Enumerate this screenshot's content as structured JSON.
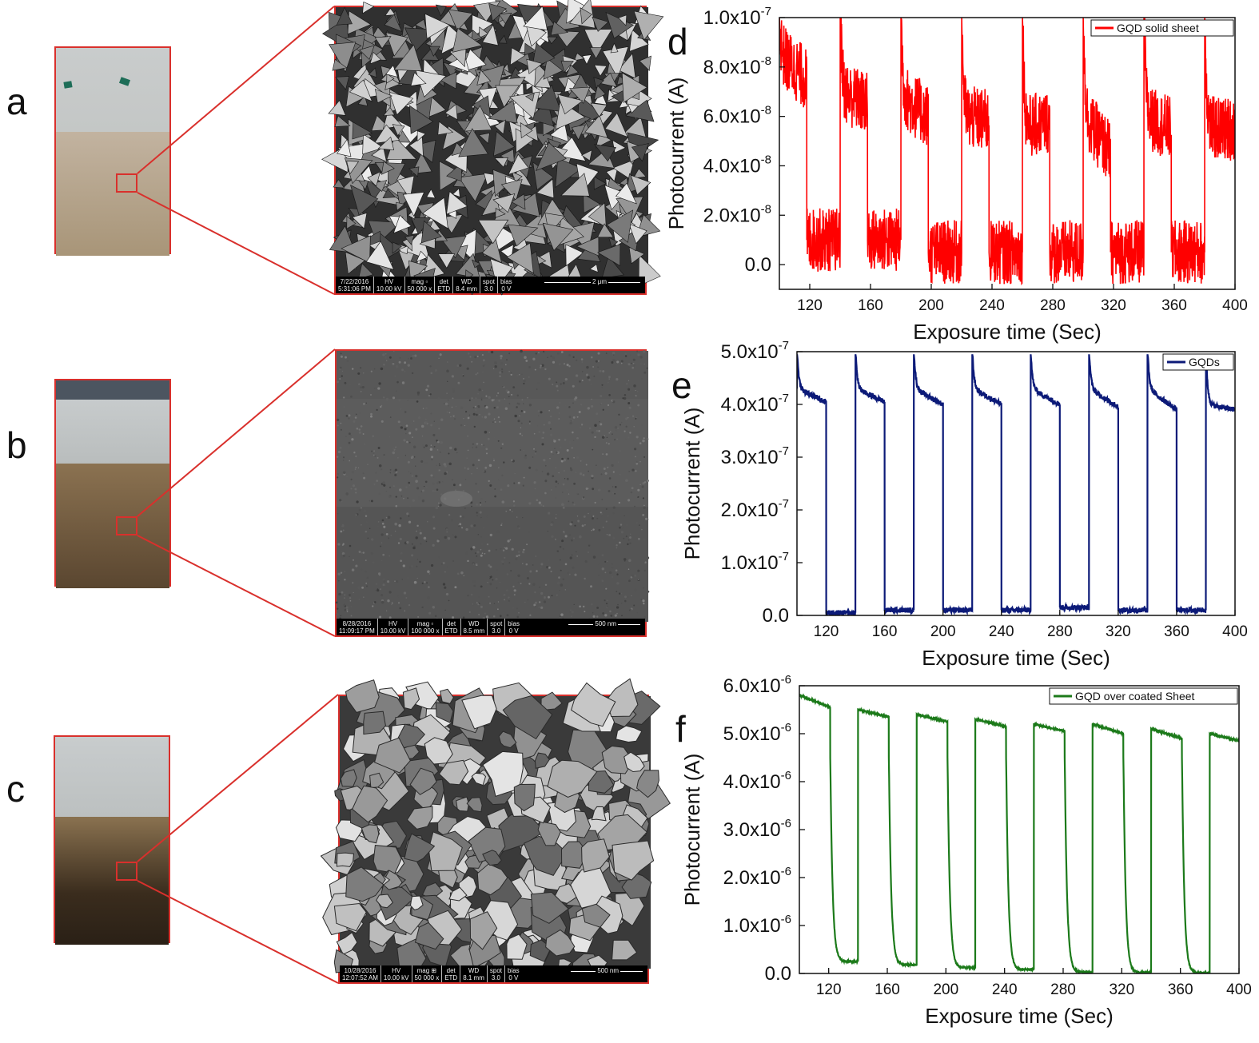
{
  "panels": {
    "a": {
      "label": "a"
    },
    "b": {
      "label": "b"
    },
    "c": {
      "label": "c"
    },
    "d": {
      "label": "d"
    },
    "e": {
      "label": "e"
    },
    "f": {
      "label": "f"
    }
  },
  "sem": [
    {
      "date": "7/22/2016",
      "time": "5:31:06 PM",
      "hv": "10.00 kV",
      "mag": "50 000 x",
      "det": "ETD",
      "wd": "8.4 mm",
      "spot": "3.0",
      "bias": "0 V",
      "scale": "2 μm",
      "texture": "triangular-crystals"
    },
    {
      "date": "8/28/2016",
      "time": "11:09:17 PM",
      "hv": "10.00 kV",
      "mag": "100 000 x",
      "det": "ETD",
      "wd": "8.5 mm",
      "spot": "3.0",
      "bias": "0 V",
      "scale": "500 nm",
      "texture": "smooth-granular"
    },
    {
      "date": "10/28/2016",
      "time": "12:07:52 AM",
      "hv": "10.00 kV",
      "mag": "50 000 x",
      "det": "ETD",
      "wd": "8.1 mm",
      "spot": "3.0",
      "bias": "0 V",
      "scale": "500 nm",
      "texture": "coarse-grains"
    }
  ],
  "sem_header": {
    "hv": "HV",
    "mag": "mag",
    "det": "det",
    "wd": "WD",
    "spot": "spot",
    "bias": "bias"
  },
  "colors": {
    "frame": "#d9302c",
    "red": "#ff0000",
    "navy": "#0c1a78",
    "green": "#1c7a1a"
  },
  "chart_data": [
    {
      "panel": "d",
      "type": "line",
      "xlabel": "Exposure time (Sec)",
      "ylabel": "Photocurrent (A)",
      "xlim": [
        100,
        400
      ],
      "ylim": [
        -1e-08,
        1e-07
      ],
      "xticks": [
        "120",
        "160",
        "200",
        "240",
        "280",
        "320",
        "360",
        "400"
      ],
      "yticks": [
        {
          "value": 0,
          "mantissa": "0.0",
          "exp": ""
        },
        {
          "value": 2e-08,
          "mantissa": "2.0x10",
          "exp": "-8"
        },
        {
          "value": 4e-08,
          "mantissa": "4.0x10",
          "exp": "-8"
        },
        {
          "value": 6e-08,
          "mantissa": "6.0x10",
          "exp": "-8"
        },
        {
          "value": 8e-08,
          "mantissa": "8.0x10",
          "exp": "-8"
        },
        {
          "value": 1e-07,
          "mantissa": "1.0x10",
          "exp": "-7"
        }
      ],
      "series": [
        {
          "name": "GQD solid sheet",
          "color": "#ff0000",
          "noise": 1.3e-08,
          "cycles": [
            {
              "on_start": 100,
              "off_start": 118,
              "on_peak": 1e-07,
              "on_start_val": 8.5e-08,
              "on_end_val": 7.5e-08,
              "off_val": 1e-08
            },
            {
              "on_start": 140,
              "off_start": 158,
              "on_peak": 1e-07,
              "on_start_val": 7e-08,
              "on_end_val": 6.5e-08,
              "off_val": 1e-08
            },
            {
              "on_start": 180,
              "off_start": 198,
              "on_peak": 1e-07,
              "on_start_val": 6.8e-08,
              "on_end_val": 6e-08,
              "off_val": 5e-09
            },
            {
              "on_start": 220,
              "off_start": 238,
              "on_peak": 1e-07,
              "on_start_val": 6e-08,
              "on_end_val": 5.8e-08,
              "off_val": 5e-09
            },
            {
              "on_start": 260,
              "off_start": 278,
              "on_peak": 1e-07,
              "on_start_val": 5.5e-08,
              "on_end_val": 5.8e-08,
              "off_val": 5e-09
            },
            {
              "on_start": 300,
              "off_start": 318,
              "on_peak": 1e-07,
              "on_start_val": 6e-08,
              "on_end_val": 4.5e-08,
              "off_val": 5e-09
            },
            {
              "on_start": 340,
              "off_start": 358,
              "on_peak": 1e-07,
              "on_start_val": 6e-08,
              "on_end_val": 5.5e-08,
              "off_val": 5e-09
            },
            {
              "on_start": 380,
              "off_start": 400,
              "on_peak": 1e-07,
              "on_start_val": 5.5e-08,
              "on_end_val": 5.5e-08,
              "off_val": 5e-09
            }
          ]
        }
      ],
      "legend": "top-right"
    },
    {
      "panel": "e",
      "type": "line",
      "xlabel": "Exposure time (Sec)",
      "ylabel": "Photocurrent (A)",
      "xlim": [
        100,
        400
      ],
      "ylim": [
        0,
        5e-07
      ],
      "xticks": [
        "120",
        "160",
        "200",
        "240",
        "280",
        "320",
        "360",
        "400"
      ],
      "yticks": [
        {
          "value": 0,
          "mantissa": "0.0",
          "exp": ""
        },
        {
          "value": 1e-07,
          "mantissa": "1.0x10",
          "exp": "-7"
        },
        {
          "value": 2e-07,
          "mantissa": "2.0x10",
          "exp": "-7"
        },
        {
          "value": 3e-07,
          "mantissa": "3.0x10",
          "exp": "-7"
        },
        {
          "value": 4e-07,
          "mantissa": "4.0x10",
          "exp": "-7"
        },
        {
          "value": 5e-07,
          "mantissa": "5.0x10",
          "exp": "-7"
        }
      ],
      "series": [
        {
          "name": "GQDs",
          "color": "#0c1a78",
          "noise": 5e-09,
          "cycles": [
            {
              "on_start": 100,
              "off_start": 120,
              "on_peak": 4.95e-07,
              "on_start_val": 4.3e-07,
              "on_end_val": 4.05e-07,
              "off_val": 5e-09
            },
            {
              "on_start": 140,
              "off_start": 160,
              "on_peak": 4.95e-07,
              "on_start_val": 4.3e-07,
              "on_end_val": 4.05e-07,
              "off_val": 1e-08
            },
            {
              "on_start": 180,
              "off_start": 200,
              "on_peak": 4.95e-07,
              "on_start_val": 4.3e-07,
              "on_end_val": 4e-07,
              "off_val": 1e-08
            },
            {
              "on_start": 220,
              "off_start": 240,
              "on_peak": 4.95e-07,
              "on_start_val": 4.3e-07,
              "on_end_val": 4e-07,
              "off_val": 1e-08
            },
            {
              "on_start": 260,
              "off_start": 280,
              "on_peak": 4.95e-07,
              "on_start_val": 4.3e-07,
              "on_end_val": 4e-07,
              "off_val": 1.5e-08
            },
            {
              "on_start": 300,
              "off_start": 320,
              "on_peak": 4.95e-07,
              "on_start_val": 4.3e-07,
              "on_end_val": 3.95e-07,
              "off_val": 1e-08
            },
            {
              "on_start": 340,
              "off_start": 360,
              "on_peak": 4.95e-07,
              "on_start_val": 4.3e-07,
              "on_end_val": 3.9e-07,
              "off_val": 1e-08
            },
            {
              "on_start": 380,
              "off_start": 400,
              "on_peak": 4.95e-07,
              "on_start_val": 4e-07,
              "on_end_val": 3.9e-07,
              "off_val": 1e-08
            }
          ]
        }
      ],
      "legend": "top-right"
    },
    {
      "panel": "f",
      "type": "line",
      "xlabel": "Exposure time (Sec)",
      "ylabel": "Photocurrent (A)",
      "xlim": [
        100,
        400
      ],
      "ylim": [
        0,
        6e-06
      ],
      "xticks": [
        "120",
        "160",
        "200",
        "240",
        "280",
        "320",
        "360",
        "400"
      ],
      "yticks": [
        {
          "value": 0,
          "mantissa": "0.0",
          "exp": ""
        },
        {
          "value": 1e-06,
          "mantissa": "1.0x10",
          "exp": "-6"
        },
        {
          "value": 2e-06,
          "mantissa": "2.0x10",
          "exp": "-6"
        },
        {
          "value": 3e-06,
          "mantissa": "3.0x10",
          "exp": "-6"
        },
        {
          "value": 4e-06,
          "mantissa": "4.0x10",
          "exp": "-6"
        },
        {
          "value": 5e-06,
          "mantissa": "5.0x10",
          "exp": "-6"
        },
        {
          "value": 6e-06,
          "mantissa": "6.0x10",
          "exp": "-6"
        }
      ],
      "series": [
        {
          "name": "GQD over coated Sheet",
          "color": "#1c7a1a",
          "noise": 1.5e-08,
          "cycles": [
            {
              "on_start": 100,
              "off_start": 121,
              "on_peak": 5.8e-06,
              "on_start_val": 5.8e-06,
              "on_end_val": 5.55e-06,
              "off_val": 2.5e-07,
              "off_start_val": 4.5e-06
            },
            {
              "on_start": 140,
              "off_start": 161,
              "on_peak": 5.5e-06,
              "on_start_val": 5.5e-06,
              "on_end_val": 5.35e-06,
              "off_val": 1.8e-07,
              "off_start_val": 4.5e-06
            },
            {
              "on_start": 180,
              "off_start": 201,
              "on_peak": 5.4e-06,
              "on_start_val": 5.4e-06,
              "on_end_val": 5.25e-06,
              "off_val": 1.2e-07,
              "off_start_val": 4.5e-06
            },
            {
              "on_start": 220,
              "off_start": 241,
              "on_peak": 5.3e-06,
              "on_start_val": 5.3e-06,
              "on_end_val": 5.15e-06,
              "off_val": 8e-08,
              "off_start_val": 4.5e-06
            },
            {
              "on_start": 260,
              "off_start": 281,
              "on_peak": 5.2e-06,
              "on_start_val": 5.2e-06,
              "on_end_val": 5.05e-06,
              "off_val": 3e-08,
              "off_start_val": 4.5e-06
            },
            {
              "on_start": 300,
              "off_start": 321,
              "on_peak": 5.2e-06,
              "on_start_val": 5.2e-06,
              "on_end_val": 5e-06,
              "off_val": 2e-08,
              "off_start_val": 4.5e-06
            },
            {
              "on_start": 340,
              "off_start": 361,
              "on_peak": 5.1e-06,
              "on_start_val": 5.1e-06,
              "on_end_val": 4.9e-06,
              "off_val": 1e-08,
              "off_start_val": 4.5e-06
            },
            {
              "on_start": 380,
              "off_start": 400,
              "on_peak": 5e-06,
              "on_start_val": 5e-06,
              "on_end_val": 4.85e-06,
              "off_val": 1e-08,
              "off_start_val": 4.5e-06
            }
          ]
        }
      ],
      "legend": "top-right"
    }
  ]
}
